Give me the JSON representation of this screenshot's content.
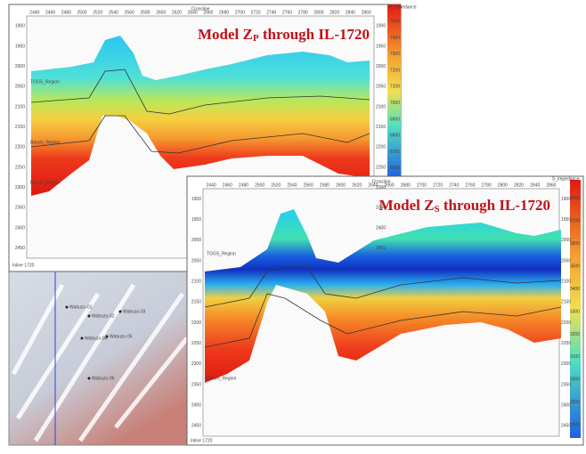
{
  "panel_zp": {
    "title_main": "Model Z",
    "title_sub": "P",
    "title_rest": " through IL-1720",
    "x_axis_label": "Crossline",
    "x_ticks": [
      "2440",
      "2460",
      "2480",
      "2500",
      "2520",
      "2540",
      "2560",
      "2580",
      "2600",
      "2620",
      "2640",
      "2660",
      "2680",
      "2700",
      "2720",
      "2740",
      "2760",
      "2780",
      "2800",
      "2820",
      "2840",
      "2860"
    ],
    "y_ticks": [
      "1900",
      "1950",
      "2000",
      "2050",
      "2100",
      "2150",
      "2200",
      "2250",
      "2300",
      "2350",
      "2400",
      "2450"
    ],
    "horizons": [
      "TGGS_Region",
      "Barum_Region",
      "Barum_Region"
    ],
    "footer": "Inline 1720",
    "colorbar": {
      "label": "P_impedance",
      "ticks": [
        "7500",
        "7400",
        "7300",
        "7200",
        "7100",
        "7000",
        "6900",
        "6800",
        "6700",
        "6600"
      ]
    }
  },
  "panel_zs": {
    "title_main": "Model Z",
    "title_sub": "S",
    "title_rest": " through IL-1720",
    "x_axis_label": "Crossline",
    "x_ticks": [
      "2440",
      "2460",
      "2480",
      "2500",
      "2520",
      "2540",
      "2560",
      "2580",
      "2600",
      "2620",
      "2640",
      "2660",
      "2680",
      "2700",
      "2720",
      "2740",
      "2760",
      "2780",
      "2800",
      "2820",
      "2840",
      "2860"
    ],
    "y_ticks": [
      "1900",
      "1950",
      "2000",
      "2050",
      "2100",
      "2150",
      "2200",
      "2250",
      "2300",
      "2350",
      "2400",
      "2450"
    ],
    "horizons": [
      "TGGS_Region",
      "Barum_Region"
    ],
    "footer": "Inline 1720",
    "colorbar": {
      "label": "S_impedance",
      "ticks": [
        "3800",
        "3700",
        "3600",
        "3500",
        "3400",
        "3300",
        "3200",
        "3100",
        "3000",
        "2900",
        "2800"
      ]
    }
  },
  "map": {
    "wells": [
      "Wabuzo-01",
      "Wabuzo-02",
      "Wabuzo-03",
      "Wabuzo-04",
      "Wabuzo-05",
      "Wabuzo-06"
    ]
  }
}
